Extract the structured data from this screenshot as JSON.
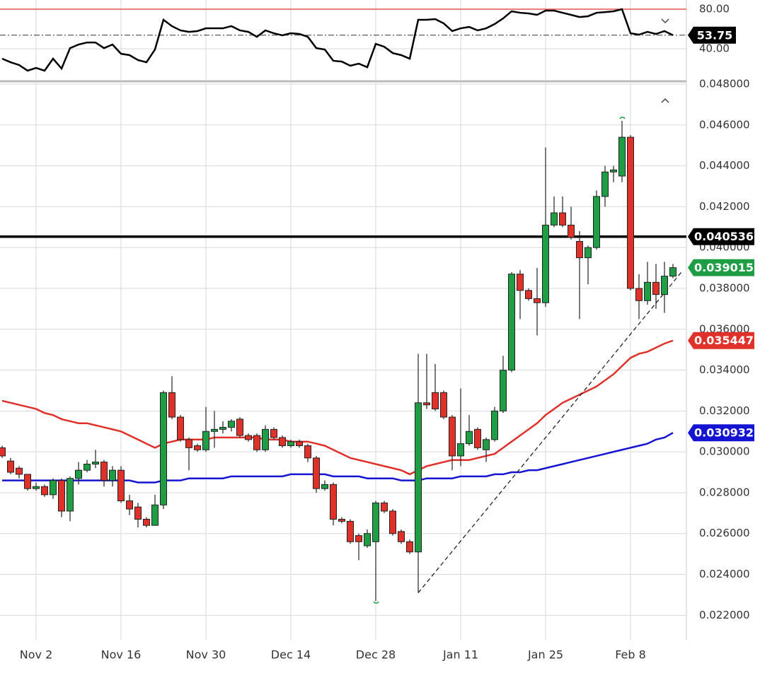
{
  "chart_data": [
    {
      "type": "candlestick",
      "categories": [
        null,
        null,
        null,
        null,
        "Nov 2",
        null,
        null,
        null,
        null,
        null,
        null,
        null,
        null,
        null,
        "Nov 16",
        null,
        null,
        null,
        null,
        null,
        null,
        null,
        null,
        null,
        "Nov 30",
        null,
        null,
        null,
        null,
        null,
        null,
        null,
        null,
        null,
        "Dec 14",
        null,
        null,
        null,
        null,
        null,
        null,
        null,
        null,
        null,
        "Dec 28",
        null,
        null,
        null,
        null,
        null,
        null,
        null,
        null,
        null,
        "Jan 11",
        null,
        null,
        null,
        null,
        null,
        null,
        null,
        null,
        null,
        "Jan 25",
        null,
        null,
        null,
        null,
        null,
        null,
        null,
        null,
        null,
        "Feb 8",
        null,
        null,
        null,
        null,
        null
      ],
      "open": [
        0.0302,
        0.02955,
        0.0292,
        0.0289,
        0.0282,
        0.0283,
        0.0279,
        0.0286,
        0.0271,
        0.0287,
        0.0291,
        0.0294,
        0.0295,
        0.0286,
        0.0291,
        0.0276,
        0.0273,
        0.0267,
        0.0264,
        0.0274,
        0.0329,
        0.0317,
        0.0306,
        0.0303,
        0.0301,
        0.031,
        0.0311,
        0.0312,
        0.0316,
        0.0308,
        0.0308,
        0.0301,
        0.0311,
        0.0307,
        0.0303,
        0.0305,
        0.0303,
        0.0297,
        0.0282,
        0.0284,
        0.0267,
        0.0266,
        0.0259,
        0.0254,
        0.0256,
        0.0275,
        0.0271,
        0.0261,
        0.0256,
        0.0251,
        0.0324,
        0.0329,
        0.0329,
        0.0317,
        0.0298,
        0.0304,
        0.0311,
        0.0301,
        0.0306,
        0.032,
        0.034,
        0.0387,
        0.0379,
        0.0375,
        0.0373,
        0.0411,
        0.0417,
        0.0411,
        0.0403,
        0.0395,
        0.04,
        0.0425,
        0.0437,
        0.0435,
        0.0454,
        0.038,
        0.0374,
        0.0383,
        0.0377,
        0.0386
      ],
      "high": [
        0.0303,
        0.0297,
        0.0293,
        0.0289,
        0.0285,
        0.0284,
        0.0287,
        0.0287,
        0.0288,
        0.0295,
        0.0296,
        0.0301,
        0.0296,
        0.0293,
        0.0293,
        0.0279,
        0.0275,
        0.0268,
        0.0279,
        0.033,
        0.0337,
        0.0318,
        0.0307,
        0.0304,
        0.0322,
        0.032,
        0.0315,
        0.0316,
        0.0317,
        0.0309,
        0.0309,
        0.0313,
        0.0312,
        0.0308,
        0.0306,
        0.0306,
        0.0304,
        0.0298,
        0.0286,
        0.0285,
        0.0268,
        0.0267,
        0.026,
        0.0262,
        0.0276,
        0.0276,
        0.0272,
        0.0262,
        0.0257,
        0.0348,
        0.0348,
        0.0343,
        0.033,
        0.0318,
        0.0331,
        0.0318,
        0.0312,
        0.0307,
        0.0322,
        0.0347,
        0.0388,
        0.0389,
        0.038,
        0.039,
        0.0449,
        0.0425,
        0.0425,
        0.042,
        0.0408,
        0.0401,
        0.0428,
        0.044,
        0.044,
        0.0462,
        0.0455,
        0.0387,
        0.0393,
        0.0392,
        0.0393,
        0.0392
      ],
      "low": [
        0.0297,
        0.0289,
        0.0287,
        0.0281,
        0.0281,
        0.0278,
        0.0277,
        0.0268,
        0.0266,
        0.0284,
        0.029,
        0.0292,
        0.0283,
        0.0283,
        0.0275,
        0.0269,
        0.0263,
        0.0263,
        0.0264,
        0.0272,
        0.0316,
        0.0305,
        0.0291,
        0.03,
        0.03,
        0.0302,
        0.0309,
        0.031,
        0.0307,
        0.0305,
        0.03,
        0.03,
        0.0306,
        0.0302,
        0.0302,
        0.0302,
        0.0295,
        0.028,
        0.0281,
        0.0264,
        0.0265,
        0.0255,
        0.0247,
        0.0253,
        0.0227,
        0.027,
        0.0259,
        0.0255,
        0.025,
        0.0231,
        0.0321,
        0.032,
        0.0316,
        0.0291,
        0.0293,
        0.0303,
        0.0301,
        0.0295,
        0.0305,
        0.0319,
        0.0339,
        0.0365,
        0.0374,
        0.0357,
        0.0371,
        0.041,
        0.041,
        0.0404,
        0.0365,
        0.0382,
        0.0399,
        0.042,
        0.0432,
        0.0432,
        0.0379,
        0.0365,
        0.0372,
        0.037,
        0.0368,
        0.0385
      ],
      "close": [
        0.0298,
        0.029,
        0.0289,
        0.0282,
        0.0283,
        0.0279,
        0.0286,
        0.0271,
        0.0287,
        0.0291,
        0.0294,
        0.0295,
        0.0286,
        0.0291,
        0.0276,
        0.0272,
        0.0267,
        0.0264,
        0.0274,
        0.0329,
        0.0317,
        0.0306,
        0.0302,
        0.0301,
        0.031,
        0.0311,
        0.0312,
        0.0315,
        0.0308,
        0.0306,
        0.0301,
        0.0311,
        0.0307,
        0.0303,
        0.0305,
        0.0303,
        0.0297,
        0.0282,
        0.0284,
        0.0267,
        0.0266,
        0.0256,
        0.0256,
        0.026,
        0.0275,
        0.0271,
        0.026,
        0.0256,
        0.0251,
        0.0324,
        0.0323,
        0.0321,
        0.0317,
        0.0298,
        0.0304,
        0.031,
        0.0302,
        0.0306,
        0.032,
        0.034,
        0.0387,
        0.0379,
        0.0375,
        0.0373,
        0.0411,
        0.0417,
        0.0411,
        0.0405,
        0.0395,
        0.04,
        0.0425,
        0.0437,
        0.0438,
        0.0454,
        0.038,
        0.0374,
        0.0383,
        0.0377,
        0.0386,
        0.039015
      ],
      "up_color": "#1f9d45",
      "down_color": "#e0302a",
      "lines": [
        {
          "color": "#e0302a",
          "values": [
            0.0325,
            0.0324,
            0.0323,
            0.0322,
            0.0321,
            0.0319,
            0.0318,
            0.0316,
            0.0315,
            0.0314,
            0.0314,
            0.0313,
            0.0312,
            0.0311,
            0.031,
            0.0308,
            0.0306,
            0.0304,
            0.0302,
            0.0304,
            0.0305,
            0.0306,
            0.0306,
            0.0306,
            0.0306,
            0.0307,
            0.0307,
            0.0307,
            0.0307,
            0.0307,
            0.0307,
            0.0306,
            0.0306,
            0.0306,
            0.0305,
            0.0305,
            0.0305,
            0.0304,
            0.0303,
            0.0301,
            0.0299,
            0.0297,
            0.0296,
            0.0295,
            0.0294,
            0.0293,
            0.0292,
            0.0291,
            0.0289,
            0.0291,
            0.0293,
            0.0294,
            0.0295,
            0.0296,
            0.0296,
            0.0296,
            0.0297,
            0.0298,
            0.0299,
            0.0302,
            0.0305,
            0.0308,
            0.0311,
            0.0314,
            0.0318,
            0.0321,
            0.0324,
            0.0326,
            0.0328,
            0.033,
            0.0332,
            0.0335,
            0.0338,
            0.0342,
            0.0346,
            0.0348,
            0.0349,
            0.0351,
            0.0353,
            0.035447
          ]
        },
        {
          "color": "#1414d2",
          "values": [
            0.0286,
            0.0286,
            0.0286,
            0.0286,
            0.0286,
            0.0286,
            0.0286,
            0.0286,
            0.0286,
            0.0286,
            0.0286,
            0.0286,
            0.0286,
            0.0286,
            0.0286,
            0.0286,
            0.0285,
            0.0285,
            0.0285,
            0.0286,
            0.0286,
            0.0286,
            0.0287,
            0.0287,
            0.0287,
            0.0287,
            0.0287,
            0.0288,
            0.0288,
            0.0288,
            0.0288,
            0.0288,
            0.0288,
            0.0288,
            0.0289,
            0.0289,
            0.0289,
            0.0289,
            0.0289,
            0.0288,
            0.0288,
            0.0288,
            0.0288,
            0.0287,
            0.0287,
            0.0287,
            0.0287,
            0.0286,
            0.0286,
            0.0286,
            0.0287,
            0.0287,
            0.0287,
            0.0287,
            0.0288,
            0.0288,
            0.0288,
            0.0288,
            0.0289,
            0.0289,
            0.029,
            0.029,
            0.0291,
            0.0291,
            0.0292,
            0.0293,
            0.0294,
            0.0295,
            0.0296,
            0.0297,
            0.0298,
            0.0299,
            0.03,
            0.0301,
            0.0302,
            0.0303,
            0.0304,
            0.0306,
            0.0307,
            0.030932
          ]
        }
      ],
      "hline": {
        "value": 0.040536,
        "color": "#000000"
      },
      "trendline": {
        "x": [
          49,
          80
        ],
        "values": [
          0.0231,
          0.0388
        ]
      },
      "ylim": [
        0.0208,
        0.048
      ],
      "yticks": [
        {
          "value": 0.048,
          "label": "0.048000"
        },
        {
          "value": 0.046,
          "label": "0.046000"
        },
        {
          "value": 0.044,
          "label": "0.044000"
        },
        {
          "value": 0.042,
          "label": "0.042000"
        },
        {
          "value": 0.04,
          "label": "0.040000"
        },
        {
          "value": 0.038,
          "label": "0.038000"
        },
        {
          "value": 0.036,
          "label": "0.036000"
        },
        {
          "value": 0.034,
          "label": "0.034000"
        },
        {
          "value": 0.032,
          "label": "0.032000"
        },
        {
          "value": 0.03,
          "label": "0.030000"
        },
        {
          "value": 0.028,
          "label": "0.028000"
        },
        {
          "value": 0.026,
          "label": "0.026000"
        },
        {
          "value": 0.024,
          "label": "0.024000"
        },
        {
          "value": 0.022,
          "label": "0.022000"
        }
      ],
      "grid": true
    },
    {
      "type": "line",
      "color": "#000000",
      "values": [
        30,
        26.4,
        23.6,
        17.9,
        20.7,
        17.9,
        30,
        20,
        40.7,
        44.3,
        46.4,
        46.4,
        40.7,
        44.3,
        35,
        33.6,
        28.6,
        26.4,
        39.3,
        69.3,
        62.9,
        58.6,
        57.1,
        57.9,
        60.7,
        60.7,
        60.7,
        62.9,
        58.6,
        57.1,
        52.1,
        58.6,
        55.7,
        53.6,
        55.7,
        55,
        52.1,
        40.7,
        39.3,
        27.9,
        27.1,
        22.9,
        25,
        21.4,
        45,
        42.1,
        35.7,
        33.6,
        30,
        69.3,
        69.3,
        70,
        65.7,
        57.9,
        60.7,
        62.1,
        58.6,
        60.7,
        65,
        70.7,
        77.9,
        76.4,
        75.7,
        74.3,
        78.6,
        78.6,
        76.4,
        74.3,
        72.1,
        72.9,
        76.4,
        77.1,
        77.9,
        80,
        55.7,
        54.3,
        57.1,
        55,
        57.9,
        53.75
      ],
      "level_line": {
        "value": 80,
        "color": "#e0302a"
      },
      "ylim": [
        8.6,
        89.3
      ],
      "yticks": [
        {
          "value": 80,
          "label": "80.00"
        },
        {
          "value": 40,
          "label": "40.00"
        }
      ],
      "grid": true
    }
  ]
}
